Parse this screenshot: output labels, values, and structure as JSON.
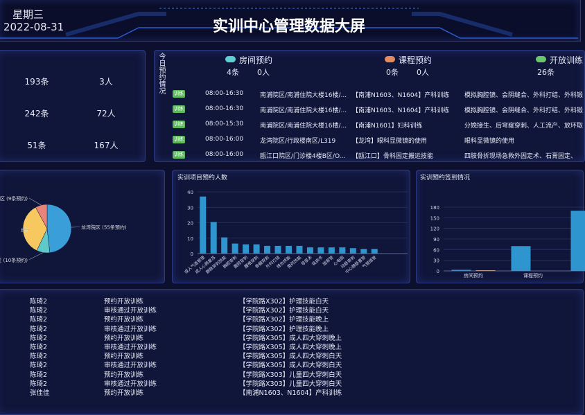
{
  "header": {
    "weekday": "星期三",
    "date": "2022-08-31",
    "title": "实训中心管理数据大屏"
  },
  "summary": {
    "rows": [
      [
        "193条",
        "3人"
      ],
      [
        "242条",
        "72人"
      ],
      [
        "51条",
        "167人"
      ]
    ]
  },
  "today": {
    "label": "今日预约情况",
    "legend": [
      {
        "name": "房间预约",
        "count": "4条",
        "people": "0人",
        "color": "#5ecfd0"
      },
      {
        "name": "课程预约",
        "count": "0条",
        "people": "0人",
        "color": "#e58a5b"
      },
      {
        "name": "开放训练",
        "count": "26条",
        "color": "#6cc46c"
      }
    ],
    "rows": [
      [
        "训练",
        "08:00-16:30",
        "南浦院区/南浦住院大楼16楼/...",
        "【南浦N1603、N1604】产科训练",
        "模拟胸腔镜、会阴缝合、外科打结、外科锻"
      ],
      [
        "训练",
        "08:00-16:30",
        "南浦院区/南浦住院大楼16楼/...",
        "【南浦N1603、N1604】产科训练",
        "模拟胸腔镜、会阴缝合、外科打结、外科锻"
      ],
      [
        "训练",
        "08:00-15:30",
        "南浦院区/南浦住院大楼16楼/...",
        "【南浦N1601】妇科训练",
        "分娩接生、后穹窿穿刺、人工流产、放环取"
      ],
      [
        "训练",
        "08:00-16:00",
        "龙湾院区/行政楼南区/L319",
        "【龙湾】眼科显微镜的使用",
        "眼科显微镜的使用"
      ],
      [
        "训练",
        "08:00-16:00",
        "瓯江口院区/门诊楼4楼B区/O...",
        "【瓯江口】骨科固定搬运技能",
        "四肢骨折现场急救外固定术、石膏固定、"
      ]
    ]
  },
  "chart_data": [
    {
      "type": "pie",
      "values": [
        55,
        10,
        40,
        9
      ],
      "value_labels": [
        "龙湾院区 (55条预约)",
        "区 (10条预约)",
        "约)",
        "区 (9条预约)"
      ],
      "colors": [
        "#3a9fd8",
        "#5fc8c8",
        "#f6c85f",
        "#e8847a"
      ]
    },
    {
      "type": "bar",
      "title": "实训项目预约人数",
      "categories": [
        "成人气道管理",
        "成人心肺复苏",
        "静脉穿刺技能",
        "胸腔穿刺",
        "腹腔穿刺",
        "腰椎穿刺",
        "骨髓穿刺",
        "外科打结",
        "缝合技能",
        "换药技能",
        "导尿术",
        "吸痰术",
        "插胃管",
        "心电图",
        "动脉穿刺",
        "中心静脉置管",
        "气管插管"
      ],
      "series": [
        {
          "color": "#2f95cf",
          "values": [
            37,
            20.5,
            10.5,
            6.5,
            6,
            6,
            5,
            5,
            5,
            5,
            4,
            4,
            4,
            4,
            3.5,
            3,
            3
          ]
        }
      ],
      "ylim": [
        0,
        40
      ],
      "yticks": [
        0,
        10,
        20,
        30,
        40
      ],
      "grid": true
    },
    {
      "type": "bar",
      "title": "实训预约签到情况",
      "categories": [
        "房间预约",
        "课程预约",
        null
      ],
      "series": [
        {
          "color": "#2f95cf",
          "values": [
            3,
            70,
            170
          ]
        },
        {
          "color": "#e0a56a",
          "values": [
            2,
            0,
            null
          ]
        }
      ],
      "ylim": [
        0,
        180
      ],
      "yticks": [
        0,
        30,
        60,
        90,
        120,
        150,
        180
      ],
      "grid": true
    }
  ],
  "log": {
    "rows": [
      [
        "陈琦2",
        "预约开放训练",
        "【学院路X302】护理技能白天"
      ],
      [
        "陈琦2",
        "审核通过开放训练",
        "【学院路X302】护理技能白天"
      ],
      [
        "陈琦2",
        "预约开放训练",
        "【学院路X302】护理技能晚上"
      ],
      [
        "陈琦2",
        "审核通过开放训练",
        "【学院路X302】护理技能晚上"
      ],
      [
        "陈琦2",
        "预约开放训练",
        "【学院路X305】成人四大穿刺晚上"
      ],
      [
        "陈琦2",
        "审核通过开放训练",
        "【学院路X305】成人四大穿刺晚上"
      ],
      [
        "陈琦2",
        "预约开放训练",
        "【学院路X305】成人四大穿刺白天"
      ],
      [
        "陈琦2",
        "审核通过开放训练",
        "【学院路X305】成人四大穿刺白天"
      ],
      [
        "陈琦2",
        "预约开放训练",
        "【学院路X303】儿童四大穿刺白天"
      ],
      [
        "陈琦2",
        "审核通过开放训练",
        "【学院路X303】儿童四大穿刺白天"
      ],
      [
        "张佳佳",
        "预约开放训练",
        "【南浦N1603、N1604】产科训练"
      ]
    ]
  }
}
